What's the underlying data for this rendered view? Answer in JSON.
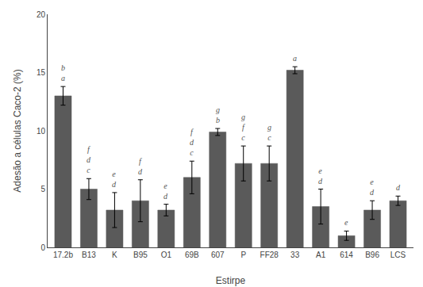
{
  "chart_data": {
    "type": "bar",
    "categories": [
      "17.2b",
      "B13",
      "K",
      "B95",
      "O1",
      "69B",
      "607",
      "P",
      "FF28",
      "33",
      "A1",
      "614",
      "B96",
      "LCS"
    ],
    "values": [
      13.0,
      5.0,
      3.2,
      4.0,
      3.2,
      6.0,
      9.9,
      7.2,
      7.2,
      15.2,
      3.5,
      1.0,
      3.2,
      4.0
    ],
    "errors": [
      0.8,
      0.9,
      1.5,
      1.8,
      0.5,
      1.4,
      0.3,
      1.5,
      1.5,
      0.3,
      1.5,
      0.4,
      0.8,
      0.4
    ],
    "annotations": [
      "b\na",
      "f\nd\nc",
      "e\nd",
      "f\nd",
      "e\nd",
      "f\nd\nc",
      "g\nb",
      "g\nf\nc",
      "g\nc",
      "a",
      "e\nd",
      "e",
      "e\nd",
      "d"
    ],
    "color": "#5a5a5a",
    "xlabel": "Estirpe",
    "ylabel": "Adesão a células Caco-2 (%)",
    "ylim": [
      0,
      20
    ],
    "yticks": [
      0,
      5,
      10,
      15,
      20
    ],
    "grid": false
  }
}
